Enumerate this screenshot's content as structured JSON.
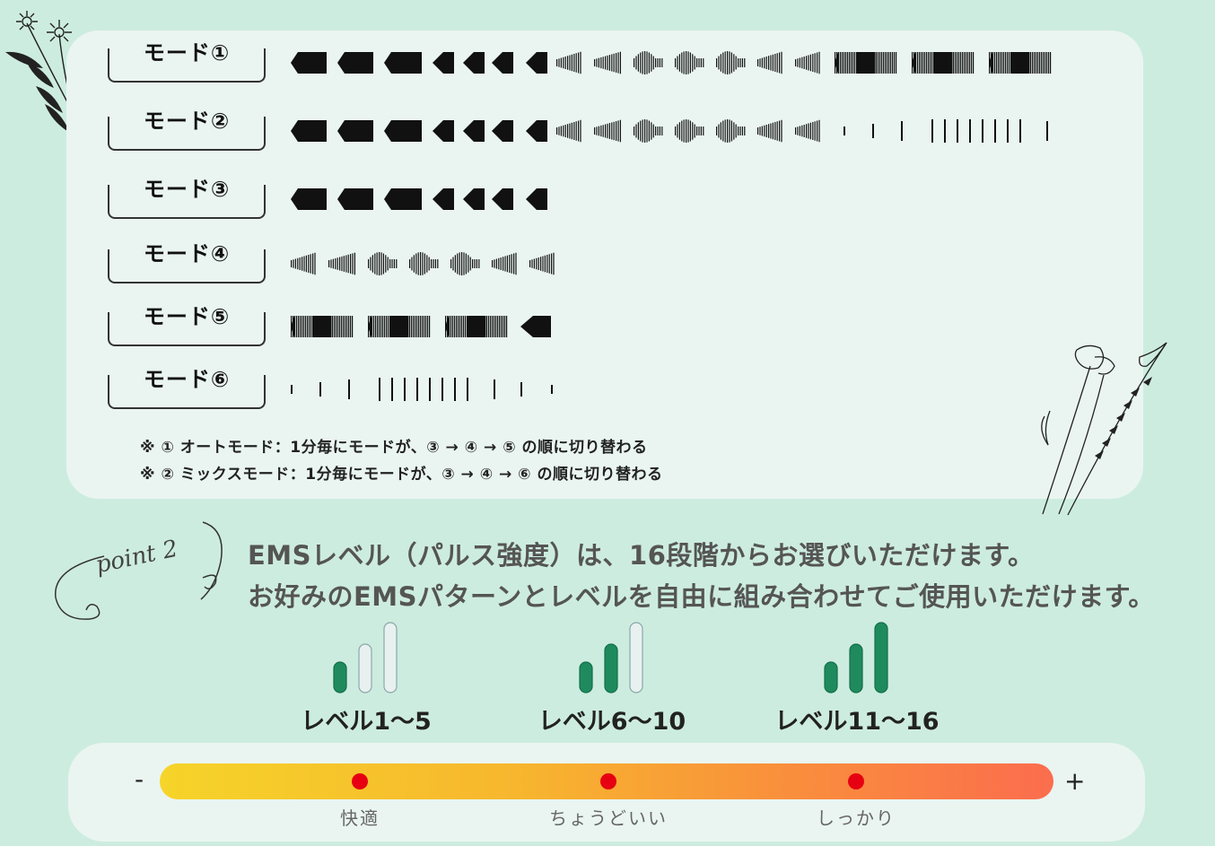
{
  "modes": [
    {
      "label": "モード①"
    },
    {
      "label": "モード②"
    },
    {
      "label": "モード③"
    },
    {
      "label": "モード④"
    },
    {
      "label": "モード⑤"
    },
    {
      "label": "モード⑥"
    }
  ],
  "notes": [
    "※ ① オートモード：1分毎にモードが、③ → ④ →  ⑤ の順に切り替わる",
    "※ ② ミックスモード：1分毎にモードが、③ → ④ → ⑥ の順に切り替わる"
  ],
  "point": {
    "badge": "point 2",
    "line1": "EMSレベル（パルス強度）は、16段階からお選びいただけます。",
    "line2": "お好みのEMSパターンとレベルを自由に組み合わせてご使用いただけます。"
  },
  "levels": [
    {
      "label": "レベル1～5",
      "filled": 1
    },
    {
      "label": "レベル6～10",
      "filled": 2
    },
    {
      "label": "レベル11～16",
      "filled": 3
    }
  ],
  "gauge": {
    "minus": "-",
    "plus": "+",
    "points": [
      "快適",
      "ちょうどいい",
      "しっかり"
    ]
  },
  "colors": {
    "background": "#cdece0",
    "panel": "#eaf5f1",
    "bar_green": "#1e8a5e",
    "dot_red": "#e60012"
  }
}
